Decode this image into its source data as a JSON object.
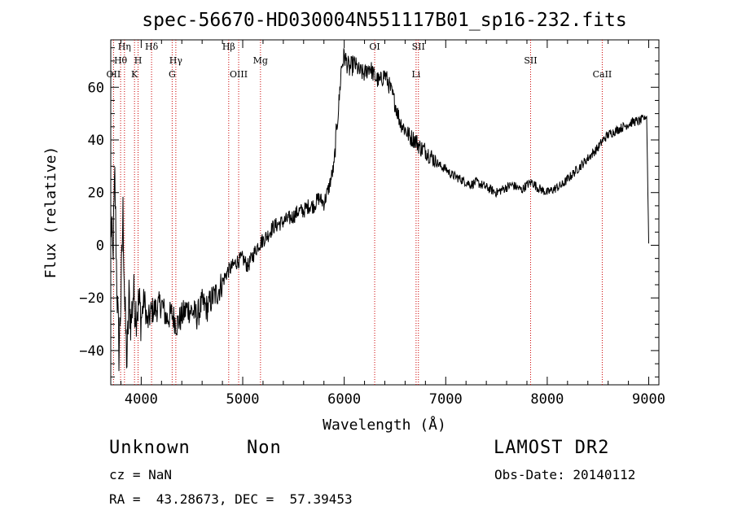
{
  "chart_data": {
    "type": "line",
    "title": "spec-56670-HD030004N551117B01_sp16-232.fits",
    "xlabel": "Wavelength (Å)",
    "ylabel": "Flux (relative)",
    "xlim": [
      3700,
      9100
    ],
    "ylim": [
      -53,
      78
    ],
    "xticks": [
      4000,
      5000,
      6000,
      7000,
      8000,
      9000
    ],
    "yticks": [
      -40,
      -20,
      0,
      20,
      40,
      60
    ],
    "yticklabels": [
      "−40",
      "−20",
      "0",
      "20",
      "40",
      "60"
    ],
    "grid": false,
    "line_color": "#000000",
    "marker_color": "#cc0000",
    "series": [
      {
        "x": [
          3700,
          3720,
          3740,
          3760,
          3780,
          3800,
          3820,
          3840,
          3860,
          3880,
          3900,
          3920,
          3950,
          3980,
          4000,
          4030,
          4060,
          4100,
          4150,
          4200,
          4250,
          4300,
          4350,
          4400,
          4450,
          4500,
          4550,
          4600,
          4650,
          4700,
          4750,
          4800,
          4850,
          4900,
          4950,
          5000,
          5050,
          5100,
          5150,
          5200,
          5250,
          5300,
          5350,
          5400,
          5450,
          5500,
          5550,
          5600,
          5650,
          5700,
          5750,
          5800,
          5850,
          5880,
          5900,
          5920,
          5950,
          5970,
          6000,
          6050,
          6100,
          6150,
          6200,
          6250,
          6300,
          6350,
          6400,
          6450,
          6500,
          6550,
          6600,
          6650,
          6700,
          6750,
          6800,
          6850,
          6900,
          6950,
          7000,
          7050,
          7100,
          7150,
          7200,
          7250,
          7300,
          7350,
          7400,
          7450,
          7500,
          7550,
          7600,
          7650,
          7700,
          7750,
          7800,
          7850,
          7900,
          7950,
          8000,
          8050,
          8100,
          8150,
          8200,
          8250,
          8300,
          8350,
          8400,
          8450,
          8500,
          8550,
          8600,
          8650,
          8700,
          8750,
          8800,
          8850,
          8900,
          8950,
          8980,
          9000
        ],
        "y": [
          10,
          -5,
          25,
          -15,
          -40,
          -20,
          12,
          -25,
          -45,
          -20,
          -30,
          -18,
          -25,
          -22,
          -28,
          -20,
          -30,
          -25,
          -24,
          -22,
          -28,
          -26,
          -30,
          -27,
          -24,
          -25,
          -27,
          -22,
          -24,
          -20,
          -18,
          -14,
          -10,
          -8,
          -6,
          -5,
          -8,
          -4,
          0,
          2,
          4,
          7,
          8,
          9,
          10,
          11,
          13,
          13,
          15,
          15,
          18,
          16,
          22,
          27,
          30,
          42,
          55,
          67,
          72,
          67,
          69,
          66,
          65,
          68,
          64,
          62,
          65,
          60,
          54,
          47,
          44,
          41,
          40,
          37,
          36,
          34,
          32,
          30,
          29,
          27,
          26,
          25,
          24,
          23,
          24,
          23,
          22,
          21,
          20,
          21,
          22,
          23,
          22,
          21,
          23,
          24,
          22,
          21,
          20,
          21,
          22,
          23,
          25,
          27,
          29,
          31,
          33,
          35,
          37,
          40,
          42,
          43,
          44,
          45,
          46,
          47,
          47,
          48,
          49,
          1
        ]
      }
    ],
    "lines": [
      {
        "label": "OII",
        "x": 3727,
        "row": 3
      },
      {
        "label": "Hθ",
        "x": 3797,
        "row": 2
      },
      {
        "label": "Hη",
        "x": 3835,
        "row": 1
      },
      {
        "label": "K",
        "x": 3934,
        "row": 3
      },
      {
        "label": "H",
        "x": 3969,
        "row": 2
      },
      {
        "label": "Hδ",
        "x": 4102,
        "row": 1
      },
      {
        "label": "G",
        "x": 4305,
        "row": 3
      },
      {
        "label": "Hγ",
        "x": 4341,
        "row": 2
      },
      {
        "label": "Hβ",
        "x": 4862,
        "row": 1
      },
      {
        "label": "OIII",
        "x": 4960,
        "row": 3
      },
      {
        "label": "Mg",
        "x": 5175,
        "row": 2
      },
      {
        "label": "OI",
        "x": 6300,
        "row": 1
      },
      {
        "label": "Li",
        "x": 6708,
        "row": 3
      },
      {
        "label": "SII",
        "x": 6731,
        "row": 1
      },
      {
        "label": "SII",
        "x": 7836,
        "row": 2
      },
      {
        "label": "CaII",
        "x": 8542,
        "row": 3
      }
    ]
  },
  "footer": {
    "object_name": "Unknown",
    "object_class": "Non",
    "survey": "LAMOST DR2",
    "cz": "cz = NaN",
    "obs_date": "Obs-Date: 20140112",
    "radec": "RA =  43.28673, DEC =  57.39453"
  }
}
